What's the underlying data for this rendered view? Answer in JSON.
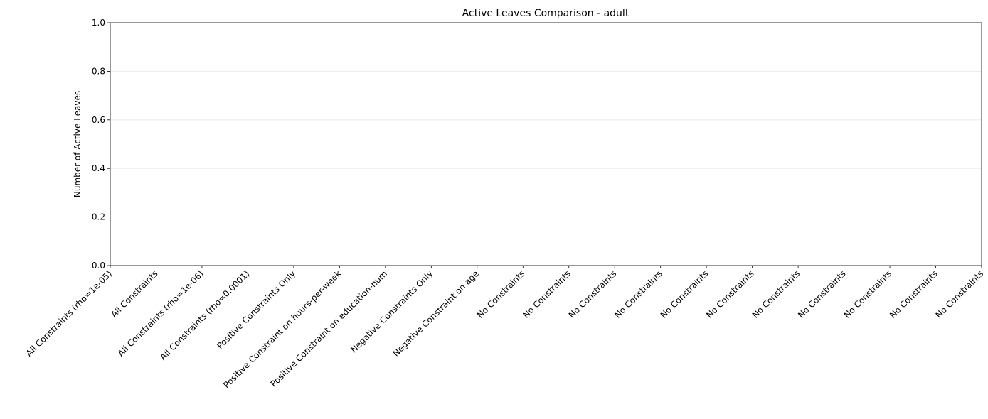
{
  "chart_data": {
    "type": "bar",
    "title": "Active Leaves Comparison - adult",
    "ylabel": "Number of Active Leaves",
    "categories": [
      "All Constraints (rho=1e-05)",
      "All Constraints",
      "All Constraints (rho=1e-06)",
      "All Constraints (rho=0.0001)",
      "Positive Constraints Only",
      "Positive Constraint on hours-per-week",
      "Positive Constraint on education-num",
      "Negative Constraints Only",
      "Negative Constraint on age",
      "No Constraints",
      "No Constraints",
      "No Constraints",
      "No Constraints",
      "No Constraints",
      "No Constraints",
      "No Constraints",
      "No Constraints",
      "No Constraints",
      "No Constraints",
      "No Constraints"
    ],
    "values": [
      0,
      0,
      0,
      0,
      0,
      0,
      0,
      0,
      0,
      0,
      0,
      0,
      0,
      0,
      0,
      0,
      0,
      0,
      0,
      0
    ],
    "ylim": [
      0,
      1
    ],
    "yticks": [
      {
        "value": 0,
        "label": "0.0"
      },
      0.2,
      0.4,
      0.6,
      0.8,
      {
        "value": 1,
        "label": "1.0"
      }
    ],
    "grid": "y"
  }
}
